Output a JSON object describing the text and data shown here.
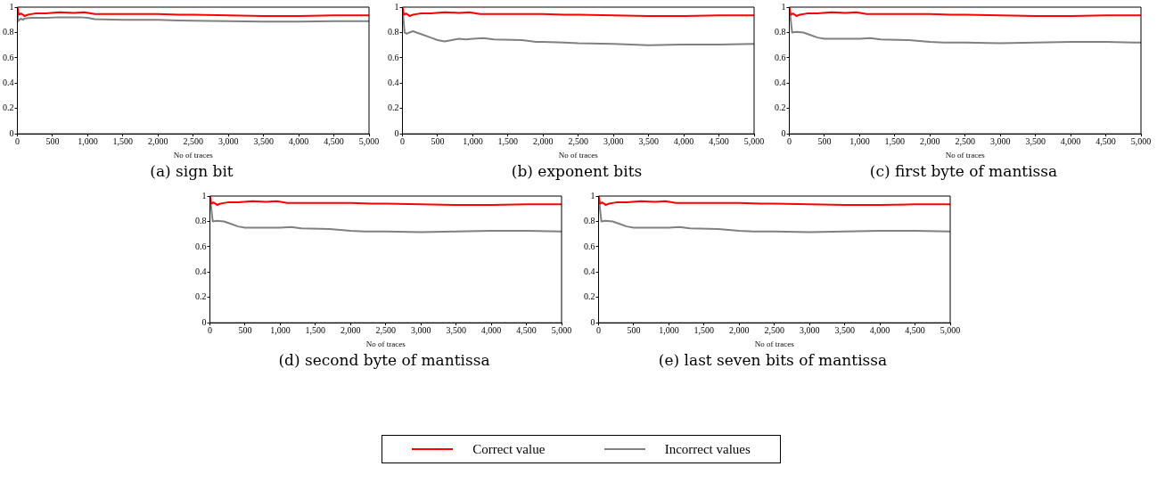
{
  "chart_data": [
    {
      "type": "line",
      "title": "(a) sign bit",
      "xlabel": "No of traces",
      "xlim": [
        0,
        5000
      ],
      "ylim": [
        0,
        1
      ],
      "xticks": [
        {
          "value": 0,
          "label": "0"
        },
        {
          "value": 500,
          "label": "500"
        },
        {
          "value": 1000,
          "label": "1,000"
        },
        {
          "value": 1500,
          "label": "1,500"
        },
        {
          "value": 2000,
          "label": "2,000"
        },
        {
          "value": 2500,
          "label": "2,500"
        },
        {
          "value": 3000,
          "label": "3,000"
        },
        {
          "value": 3500,
          "label": "3,500"
        },
        {
          "value": 4000,
          "label": "4,000"
        },
        {
          "value": 4500,
          "label": "4,500"
        },
        {
          "value": 5000,
          "label": "5,000"
        }
      ],
      "yticks": [
        0,
        0.2,
        0.4,
        0.6,
        0.8,
        1
      ],
      "series": [
        {
          "color": "#ff0000",
          "x": [
            0,
            20,
            50,
            80,
            100,
            150,
            250,
            400,
            600,
            800,
            950,
            1100,
            1500,
            2000,
            2300,
            2500,
            3000,
            3500,
            4000,
            4500,
            5000
          ],
          "values": [
            1.0,
            0.94,
            0.95,
            0.94,
            0.93,
            0.94,
            0.95,
            0.95,
            0.96,
            0.955,
            0.96,
            0.945,
            0.945,
            0.945,
            0.94,
            0.94,
            0.935,
            0.93,
            0.93,
            0.935,
            0.935
          ]
        },
        {
          "color": "#808080",
          "x": [
            0,
            10,
            50,
            80,
            100,
            200,
            400,
            600,
            900,
            1000,
            1100,
            1500,
            2000,
            2300,
            2500,
            3000,
            3500,
            4000,
            4500,
            5000
          ],
          "values": [
            1.0,
            0.89,
            0.91,
            0.9,
            0.91,
            0.915,
            0.915,
            0.92,
            0.92,
            0.915,
            0.905,
            0.9,
            0.9,
            0.895,
            0.893,
            0.89,
            0.885,
            0.885,
            0.89,
            0.89
          ]
        }
      ]
    },
    {
      "type": "line",
      "title": "(b) exponent bits",
      "xlabel": "No of traces",
      "xlim": [
        0,
        5000
      ],
      "ylim": [
        0,
        1
      ],
      "xticks": [
        {
          "value": 0,
          "label": "0"
        },
        {
          "value": 500,
          "label": "500"
        },
        {
          "value": 1000,
          "label": "1,000"
        },
        {
          "value": 1500,
          "label": "1,500"
        },
        {
          "value": 2000,
          "label": "2,000"
        },
        {
          "value": 2500,
          "label": "2,500"
        },
        {
          "value": 3000,
          "label": "3,000"
        },
        {
          "value": 3500,
          "label": "3,500"
        },
        {
          "value": 4000,
          "label": "4,000"
        },
        {
          "value": 4500,
          "label": "4,500"
        },
        {
          "value": 5000,
          "label": "5,000"
        }
      ],
      "yticks": [
        0,
        0.2,
        0.4,
        0.6,
        0.8,
        1
      ],
      "series": [
        {
          "color": "#ff0000",
          "x": [
            0,
            20,
            50,
            80,
            100,
            150,
            250,
            400,
            600,
            800,
            950,
            1100,
            1500,
            2000,
            2300,
            2500,
            3000,
            3500,
            4000,
            4500,
            5000
          ],
          "values": [
            1.0,
            0.94,
            0.95,
            0.94,
            0.93,
            0.94,
            0.95,
            0.95,
            0.96,
            0.955,
            0.96,
            0.945,
            0.945,
            0.945,
            0.94,
            0.94,
            0.935,
            0.93,
            0.93,
            0.935,
            0.935
          ]
        },
        {
          "color": "#808080",
          "x": [
            0,
            30,
            60,
            100,
            150,
            200,
            300,
            400,
            500,
            600,
            700,
            800,
            900,
            1000,
            1150,
            1300,
            1700,
            1900,
            2000,
            2300,
            2500,
            3000,
            3500,
            4000,
            4500,
            5000
          ],
          "values": [
            1.0,
            0.8,
            0.79,
            0.8,
            0.81,
            0.8,
            0.78,
            0.76,
            0.74,
            0.73,
            0.74,
            0.75,
            0.745,
            0.75,
            0.755,
            0.745,
            0.74,
            0.725,
            0.725,
            0.72,
            0.715,
            0.71,
            0.7,
            0.705,
            0.705,
            0.71
          ]
        }
      ]
    },
    {
      "type": "line",
      "title": "(c) first byte of mantissa",
      "xlabel": "No of traces",
      "xlim": [
        0,
        5000
      ],
      "ylim": [
        0,
        1
      ],
      "xticks": [
        {
          "value": 0,
          "label": "0"
        },
        {
          "value": 500,
          "label": "500"
        },
        {
          "value": 1000,
          "label": "1,000"
        },
        {
          "value": 1500,
          "label": "1,500"
        },
        {
          "value": 2000,
          "label": "2,000"
        },
        {
          "value": 2500,
          "label": "2,500"
        },
        {
          "value": 3000,
          "label": "3,000"
        },
        {
          "value": 3500,
          "label": "3,500"
        },
        {
          "value": 4000,
          "label": "4,000"
        },
        {
          "value": 4500,
          "label": "4,500"
        },
        {
          "value": 5000,
          "label": "5,000"
        }
      ],
      "yticks": [
        0,
        0.2,
        0.4,
        0.6,
        0.8,
        1
      ],
      "series": [
        {
          "color": "#ff0000",
          "x": [
            0,
            20,
            50,
            80,
            100,
            150,
            250,
            400,
            600,
            800,
            950,
            1100,
            1500,
            2000,
            2300,
            2500,
            3000,
            3500,
            4000,
            4500,
            5000
          ],
          "values": [
            1.0,
            0.94,
            0.95,
            0.94,
            0.93,
            0.94,
            0.95,
            0.95,
            0.96,
            0.955,
            0.96,
            0.945,
            0.945,
            0.945,
            0.94,
            0.94,
            0.935,
            0.93,
            0.93,
            0.935,
            0.935
          ]
        },
        {
          "color": "#808080",
          "x": [
            0,
            40,
            100,
            200,
            300,
            400,
            500,
            700,
            900,
            1000,
            1150,
            1300,
            1700,
            2000,
            2200,
            2500,
            3000,
            3500,
            4000,
            4500,
            5000
          ],
          "values": [
            1.0,
            0.8,
            0.805,
            0.8,
            0.78,
            0.76,
            0.75,
            0.75,
            0.75,
            0.75,
            0.755,
            0.745,
            0.74,
            0.725,
            0.72,
            0.72,
            0.715,
            0.72,
            0.725,
            0.725,
            0.72
          ]
        }
      ]
    },
    {
      "type": "line",
      "title": "(d) second byte of mantissa",
      "xlabel": "No of traces",
      "xlim": [
        0,
        5000
      ],
      "ylim": [
        0,
        1
      ],
      "xticks": [
        {
          "value": 0,
          "label": "0"
        },
        {
          "value": 500,
          "label": "500"
        },
        {
          "value": 1000,
          "label": "1,000"
        },
        {
          "value": 1500,
          "label": "1,500"
        },
        {
          "value": 2000,
          "label": "2,000"
        },
        {
          "value": 2500,
          "label": "2,500"
        },
        {
          "value": 3000,
          "label": "3,000"
        },
        {
          "value": 3500,
          "label": "3,500"
        },
        {
          "value": 4000,
          "label": "4,000"
        },
        {
          "value": 4500,
          "label": "4,500"
        },
        {
          "value": 5000,
          "label": "5,000"
        }
      ],
      "yticks": [
        0,
        0.2,
        0.4,
        0.6,
        0.8,
        1
      ],
      "series": [
        {
          "color": "#ff0000",
          "x": [
            0,
            20,
            50,
            80,
            100,
            150,
            250,
            400,
            600,
            800,
            950,
            1100,
            1500,
            2000,
            2300,
            2500,
            3000,
            3500,
            4000,
            4500,
            5000
          ],
          "values": [
            1.0,
            0.94,
            0.95,
            0.94,
            0.93,
            0.94,
            0.95,
            0.95,
            0.96,
            0.955,
            0.96,
            0.945,
            0.945,
            0.945,
            0.94,
            0.94,
            0.935,
            0.93,
            0.93,
            0.935,
            0.935
          ]
        },
        {
          "color": "#808080",
          "x": [
            0,
            40,
            100,
            200,
            300,
            400,
            500,
            700,
            900,
            1000,
            1150,
            1300,
            1700,
            2000,
            2200,
            2500,
            3000,
            3500,
            4000,
            4500,
            5000
          ],
          "values": [
            1.0,
            0.8,
            0.805,
            0.8,
            0.78,
            0.76,
            0.75,
            0.75,
            0.75,
            0.75,
            0.755,
            0.745,
            0.74,
            0.725,
            0.72,
            0.72,
            0.715,
            0.72,
            0.725,
            0.725,
            0.72
          ]
        }
      ]
    },
    {
      "type": "line",
      "title": "(e) last seven bits of mantissa",
      "xlabel": "No of traces",
      "xlim": [
        0,
        5000
      ],
      "ylim": [
        0,
        1
      ],
      "legend": "bottom",
      "xticks": [
        {
          "value": 0,
          "label": "0"
        },
        {
          "value": 500,
          "label": "500"
        },
        {
          "value": 1000,
          "label": "1,000"
        },
        {
          "value": 1500,
          "label": "1,500"
        },
        {
          "value": 2000,
          "label": "2,000"
        },
        {
          "value": 2500,
          "label": "2,500"
        },
        {
          "value": 3000,
          "label": "3,000"
        },
        {
          "value": 3500,
          "label": "3,500"
        },
        {
          "value": 4000,
          "label": "4,000"
        },
        {
          "value": 4500,
          "label": "4,500"
        },
        {
          "value": 5000,
          "label": "5,000"
        }
      ],
      "yticks": [
        0,
        0.2,
        0.4,
        0.6,
        0.8,
        1
      ],
      "series": [
        {
          "name": "Correct value",
          "color": "#ff0000",
          "x": [
            0,
            20,
            50,
            80,
            100,
            150,
            250,
            400,
            600,
            800,
            950,
            1100,
            1500,
            2000,
            2300,
            2500,
            3000,
            3500,
            4000,
            4500,
            5000
          ],
          "values": [
            1.0,
            0.94,
            0.95,
            0.94,
            0.93,
            0.94,
            0.95,
            0.95,
            0.96,
            0.955,
            0.96,
            0.945,
            0.945,
            0.945,
            0.94,
            0.94,
            0.935,
            0.93,
            0.93,
            0.935,
            0.935
          ]
        },
        {
          "name": "Incorrect values",
          "color": "#808080",
          "x": [
            0,
            40,
            100,
            200,
            300,
            400,
            500,
            700,
            900,
            1000,
            1150,
            1300,
            1700,
            2000,
            2200,
            2500,
            3000,
            3500,
            4000,
            4500,
            5000
          ],
          "values": [
            1.0,
            0.8,
            0.805,
            0.8,
            0.78,
            0.76,
            0.75,
            0.75,
            0.75,
            0.75,
            0.755,
            0.745,
            0.74,
            0.725,
            0.72,
            0.72,
            0.715,
            0.72,
            0.725,
            0.725,
            0.72
          ]
        }
      ]
    }
  ]
}
